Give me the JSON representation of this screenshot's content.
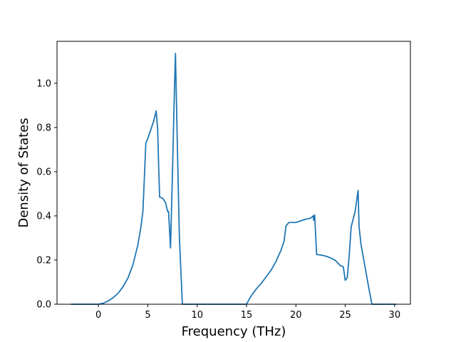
{
  "chart_data": {
    "type": "line",
    "title": "",
    "xlabel": "Frequency (THz)",
    "ylabel": "Density of States",
    "xlim": [
      -4.2,
      31.6
    ],
    "ylim": [
      0.0,
      1.19
    ],
    "xticks": [
      0,
      5,
      10,
      15,
      20,
      25,
      30
    ],
    "xtick_labels": [
      "0",
      "5",
      "10",
      "15",
      "20",
      "25",
      "30"
    ],
    "yticks": [
      0.0,
      0.2,
      0.4,
      0.6,
      0.8,
      1.0
    ],
    "ytick_labels": [
      "0.0",
      "0.2",
      "0.4",
      "0.6",
      "0.8",
      "1.0"
    ],
    "grid": false,
    "legend": "none",
    "series": [
      {
        "color": "#1f77b4",
        "x": [
          -2.8,
          0.0,
          0.5,
          1.0,
          1.5,
          2.0,
          2.5,
          3.0,
          3.5,
          4.0,
          4.3,
          4.5,
          4.6,
          4.8,
          5.0,
          5.3,
          5.6,
          5.85,
          6.0,
          6.1,
          6.2,
          6.5,
          6.8,
          7.0,
          7.1,
          7.3,
          7.5,
          7.7,
          7.8,
          8.0,
          8.2,
          8.5,
          10.0,
          15.0,
          15.3,
          15.5,
          16.0,
          16.5,
          17.0,
          17.5,
          18.0,
          18.5,
          18.8,
          19.0,
          19.3,
          20.0,
          21.0,
          21.5,
          21.75,
          21.8,
          21.9,
          22.1,
          22.5,
          23.0,
          23.5,
          24.0,
          24.5,
          24.8,
          25.0,
          25.2,
          25.4,
          25.6,
          26.0,
          26.3,
          26.4,
          26.6,
          27.0,
          27.4,
          27.7,
          28.0,
          29.0,
          30.0,
          30.2
        ],
        "y": [
          0.0,
          0.0,
          0.005,
          0.015,
          0.03,
          0.05,
          0.08,
          0.12,
          0.18,
          0.27,
          0.35,
          0.42,
          0.52,
          0.73,
          0.75,
          0.79,
          0.83,
          0.875,
          0.79,
          0.62,
          0.485,
          0.48,
          0.46,
          0.42,
          0.42,
          0.255,
          0.6,
          0.98,
          1.135,
          0.7,
          0.3,
          0.0,
          0.0,
          0.0,
          0.025,
          0.04,
          0.07,
          0.095,
          0.125,
          0.155,
          0.195,
          0.245,
          0.285,
          0.355,
          0.37,
          0.37,
          0.385,
          0.39,
          0.4,
          0.38,
          0.405,
          0.225,
          0.223,
          0.218,
          0.21,
          0.198,
          0.175,
          0.17,
          0.108,
          0.12,
          0.22,
          0.35,
          0.42,
          0.515,
          0.35,
          0.27,
          0.17,
          0.07,
          0.0,
          0.0,
          0.0,
          0.0,
          0.0
        ]
      }
    ]
  }
}
